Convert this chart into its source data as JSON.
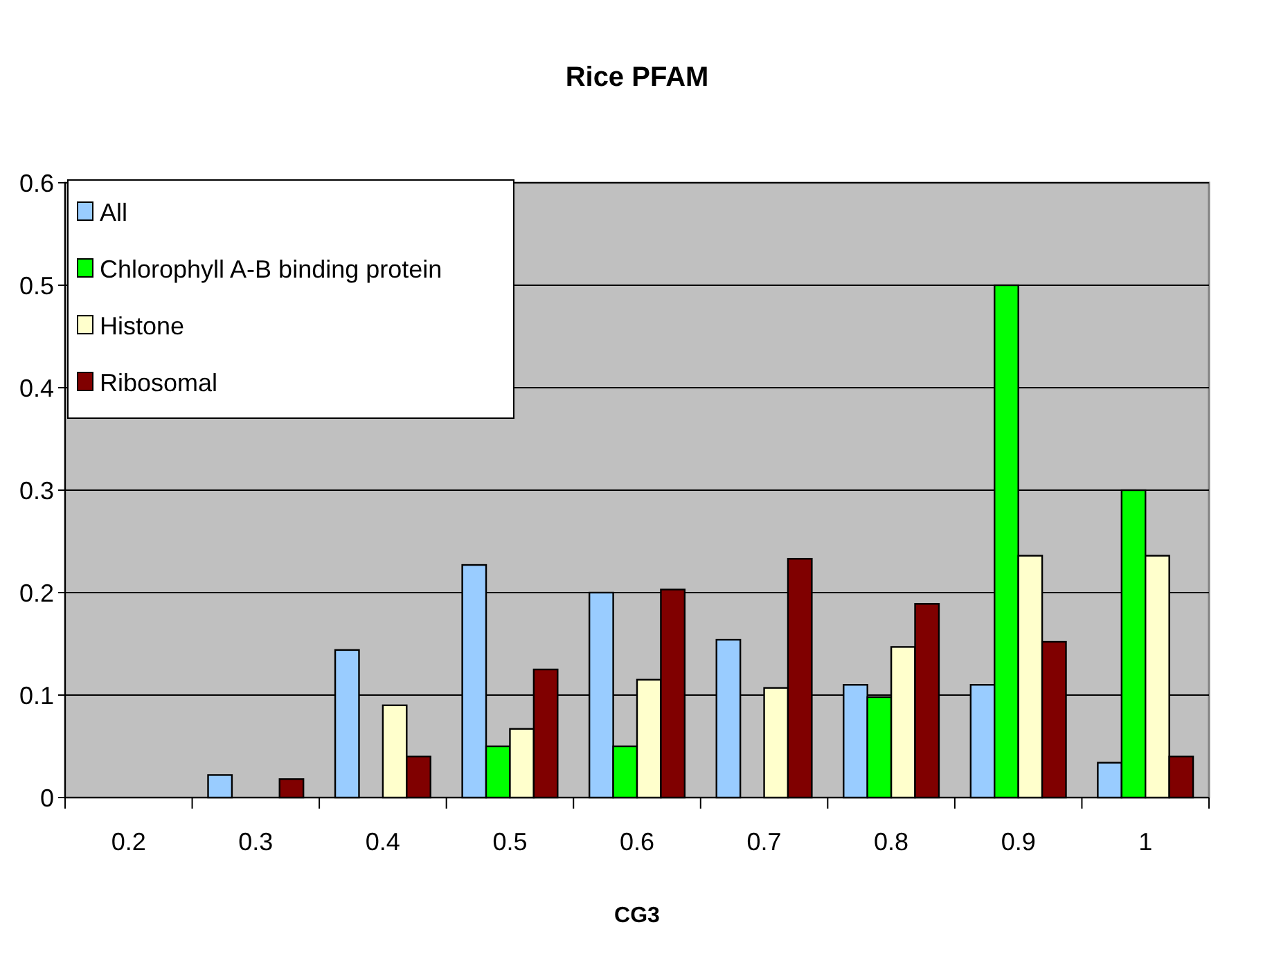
{
  "chart_data": {
    "type": "bar",
    "title": "Rice PFAM",
    "xlabel": "CG3",
    "categories": [
      "0.2",
      "0.3",
      "0.4",
      "0.5",
      "0.6",
      "0.7",
      "0.8",
      "0.9",
      "1"
    ],
    "series": [
      {
        "name": "All",
        "color": "#99ccff",
        "values": [
          0,
          0.022,
          0.144,
          0.227,
          0.2,
          0.154,
          0.11,
          0.11,
          0.034
        ]
      },
      {
        "name": "Chlorophyll A-B binding protein",
        "color": "#00ff00",
        "values": [
          0,
          0,
          0,
          0.05,
          0.05,
          0,
          0.098,
          0.5,
          0.3
        ]
      },
      {
        "name": "Histone",
        "color": "#ffffcc",
        "values": [
          0,
          0,
          0.09,
          0.067,
          0.115,
          0.107,
          0.147,
          0.236,
          0.236
        ]
      },
      {
        "name": "Ribosomal",
        "color": "#800000",
        "values": [
          0,
          0.018,
          0.04,
          0.125,
          0.203,
          0.233,
          0.189,
          0.152,
          0.04
        ]
      }
    ],
    "ylim": [
      0,
      0.6
    ],
    "yticks": [
      0,
      0.1,
      0.2,
      0.3,
      0.4,
      0.5,
      0.6
    ],
    "grid": "y",
    "legend": "top left"
  }
}
